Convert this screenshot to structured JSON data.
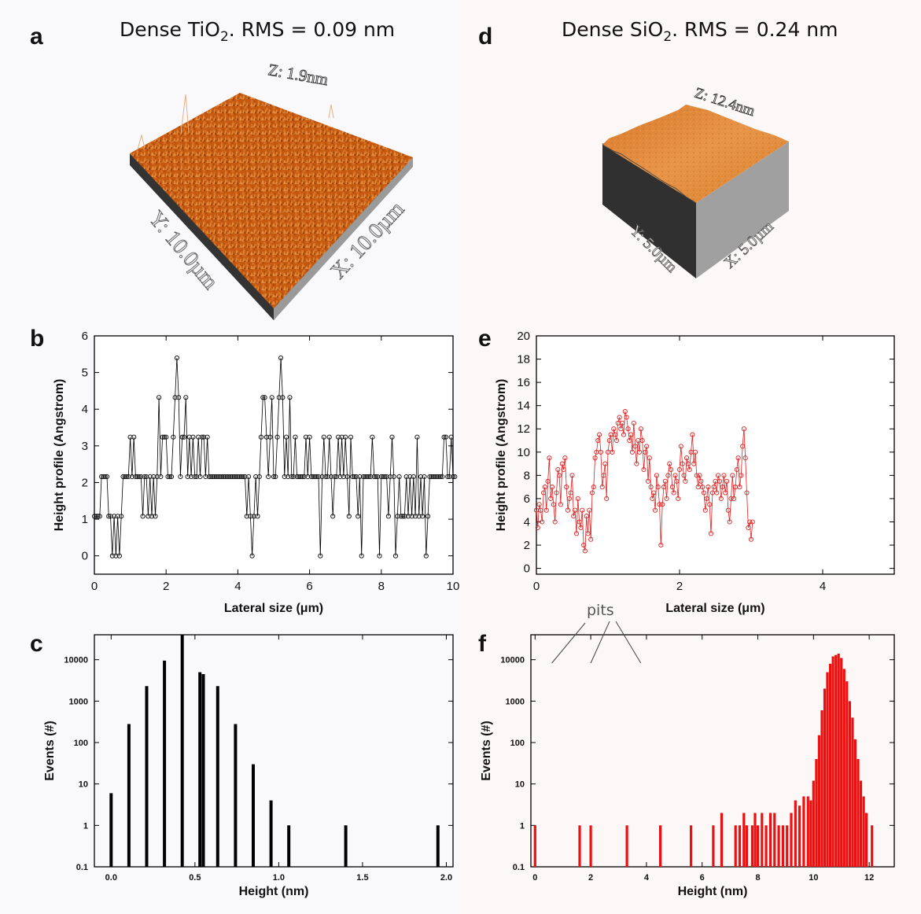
{
  "panels": {
    "a": {
      "label": "a",
      "title": "Dense TiO",
      "title_sub": "2",
      "title_rest": ". RMS = 0.09 nm",
      "z_label": "Z: 1.9nm",
      "x_label": "X: 10.0µm",
      "y_label": "Y: 10.0µm"
    },
    "d": {
      "label": "d",
      "title": "Dense SiO",
      "title_sub": "2",
      "title_rest": ". RMS = 0.24 nm",
      "z_label": "Z: 12.4nm",
      "x_label": "X: 5.0µm",
      "y_label": "Y: 5.0µm"
    },
    "b": {
      "label": "b"
    },
    "c": {
      "label": "c"
    },
    "e": {
      "label": "e"
    },
    "f": {
      "label": "f",
      "annotation": "pits"
    }
  },
  "colors": {
    "afm_surface": "#c45a10",
    "afm_surface_si": "#e08a35",
    "series_b": "#000000",
    "series_e": "#e02020",
    "bars_c": "#000000",
    "bars_f": "#ee1010"
  },
  "chart_data": [
    {
      "id": "b",
      "type": "line",
      "xlabel": "Lateral size (μm)",
      "ylabel": "Height profile (Angstrom)",
      "xlim": [
        0,
        10
      ],
      "ylim": [
        -0.5,
        6
      ],
      "xticks": [
        0,
        2,
        4,
        6,
        8,
        10
      ],
      "yticks": [
        0,
        1,
        2,
        3,
        4,
        5,
        6
      ],
      "x_start": 0,
      "x_step": 0.05,
      "values": [
        1.08,
        1.08,
        1.08,
        1.08,
        2.16,
        2.16,
        2.16,
        2.16,
        1.08,
        1.08,
        0,
        1.08,
        0,
        1.08,
        0,
        1.08,
        2.16,
        2.16,
        2.16,
        2.16,
        3.24,
        2.16,
        3.24,
        2.16,
        2.16,
        2.16,
        2.16,
        1.08,
        2.16,
        2.16,
        1.08,
        2.16,
        1.08,
        2.16,
        1.08,
        2.16,
        4.32,
        2.16,
        3.24,
        3.24,
        3.24,
        2.16,
        2.16,
        2.16,
        3.24,
        4.32,
        5.4,
        4.32,
        2.16,
        3.24,
        3.24,
        4.32,
        2.16,
        3.24,
        2.16,
        3.24,
        2.16,
        2.16,
        3.24,
        2.16,
        3.24,
        3.24,
        2.16,
        3.24,
        2.16,
        2.16,
        2.16,
        2.16,
        2.16,
        2.16,
        2.16,
        2.16,
        2.16,
        2.16,
        2.16,
        2.16,
        2.16,
        2.16,
        2.16,
        2.16,
        2.16,
        2.16,
        2.16,
        2.16,
        2.16,
        1.08,
        2.16,
        1.08,
        0,
        1.08,
        2.16,
        1.08,
        2.16,
        3.24,
        4.32,
        4.32,
        3.24,
        2.16,
        3.24,
        4.32,
        2.16,
        2.16,
        3.24,
        4.32,
        5.4,
        4.32,
        2.16,
        3.24,
        2.16,
        4.32,
        2.16,
        2.16,
        3.24,
        2.16,
        2.16,
        2.16,
        2.16,
        2.16,
        3.24,
        2.16,
        3.24,
        2.16,
        2.16,
        2.16,
        2.16,
        2.16,
        0,
        2.16,
        3.24,
        2.16,
        2.16,
        3.24,
        2.16,
        1.08,
        2.16,
        2.16,
        3.24,
        2.16,
        3.24,
        2.16,
        3.24,
        2.16,
        1.08,
        3.24,
        2.16,
        2.16,
        2.16,
        1.08,
        2.16,
        0,
        2.16,
        2.16,
        2.16,
        2.16,
        2.16,
        3.24,
        2.16,
        2.16,
        2.16,
        0,
        2.16,
        2.16,
        2.16,
        2.16,
        1.08,
        2.16,
        3.24,
        2.16,
        0,
        1.08,
        2.16,
        1.08,
        1.08,
        1.08,
        2.16,
        1.08,
        2.16,
        1.08,
        2.16,
        1.08,
        3.24,
        1.08,
        2.16,
        1.08,
        2.16,
        0,
        1.08,
        2.16,
        2.16,
        2.16,
        2.16,
        2.16,
        2.16,
        2.16,
        2.16,
        3.24,
        3.24,
        2.16,
        2.16,
        3.24,
        2.16,
        2.16
      ]
    },
    {
      "id": "e",
      "type": "line",
      "xlabel": "Lateral size (μm)",
      "ylabel": "Height profile (Angstrom)",
      "xlim": [
        0,
        5
      ],
      "ylim": [
        -0.5,
        20
      ],
      "xticks": [
        0,
        2,
        4
      ],
      "yticks": [
        0,
        2,
        4,
        6,
        8,
        10,
        12,
        14,
        16,
        18,
        20
      ],
      "x_start": 0,
      "x_step": 0.02,
      "values": [
        5,
        3.5,
        5.5,
        5,
        4,
        6.5,
        7,
        5,
        7.5,
        9.5,
        6,
        7,
        5.5,
        4,
        6.5,
        8.5,
        8,
        5.5,
        9,
        8.5,
        9.5,
        7,
        5,
        6,
        6.5,
        8,
        4.5,
        5,
        3,
        6,
        4,
        3.5,
        5,
        2,
        1.5,
        4.5,
        3,
        5,
        2.5,
        6.5,
        7,
        9.5,
        10,
        11,
        11.5,
        10,
        7,
        8,
        9,
        6,
        10,
        11,
        11.5,
        10,
        12,
        11.5,
        11,
        12.5,
        13,
        12,
        12.5,
        11.5,
        13.5,
        13,
        12,
        11,
        11.5,
        10,
        12.5,
        10.5,
        9,
        11,
        10,
        12,
        11,
        8.5,
        10,
        10.5,
        7.5,
        9.5,
        7,
        6,
        6.5,
        5,
        8,
        7,
        5.5,
        2,
        5.5,
        7,
        7.5,
        6,
        8,
        9,
        8.5,
        7,
        6.5,
        8,
        7.5,
        6,
        8.5,
        10.5,
        9,
        8,
        7.5,
        9.5,
        9,
        8.5,
        10,
        11.5,
        9,
        10,
        8,
        7,
        8,
        7.5,
        7,
        6.5,
        5,
        6,
        7,
        5.5,
        3,
        6.5,
        7,
        7.5,
        6.5,
        8,
        7.5,
        6,
        7,
        8,
        6.5,
        7.5,
        5,
        4,
        6,
        8,
        6,
        7,
        8.5,
        9.5,
        7,
        8,
        10.5,
        12,
        9.5,
        6.5,
        3.5,
        4,
        2.5,
        4
      ]
    },
    {
      "id": "c",
      "type": "bar",
      "yscale": "log",
      "xlabel": "Height (nm)",
      "ylabel": "Events (#)",
      "xlim": [
        -0.1,
        2.04
      ],
      "ylim": [
        0.1,
        40000
      ],
      "xticks": [
        0.0,
        0.5,
        1.0,
        1.5,
        2.0
      ],
      "xtick_labels": [
        "0.0",
        "0.5",
        "1.0",
        "1.5",
        "2.0"
      ],
      "yticks": [
        0.1,
        1,
        10,
        100,
        1000,
        10000
      ],
      "ytick_labels": [
        "0.1",
        "1",
        "10",
        "100",
        "1000",
        "10000"
      ],
      "x": [
        0.0,
        0.106,
        0.212,
        0.318,
        0.424,
        0.53,
        0.55,
        0.636,
        0.742,
        0.848,
        0.954,
        1.06,
        1.4,
        1.95
      ],
      "values": [
        6,
        280,
        2300,
        9500,
        40000,
        5000,
        4500,
        2300,
        280,
        30,
        4,
        1,
        1,
        1
      ]
    },
    {
      "id": "f",
      "type": "bar",
      "yscale": "log",
      "xlabel": "Height (nm)",
      "ylabel": "Events (#)",
      "xlim": [
        -0.15,
        12.9
      ],
      "ylim": [
        0.1,
        40000
      ],
      "xticks": [
        0,
        2,
        4,
        6,
        8,
        10,
        12
      ],
      "xtick_labels": [
        "0",
        "2",
        "4",
        "6",
        "8",
        "10",
        "12"
      ],
      "yticks": [
        0.1,
        1,
        10,
        100,
        1000,
        10000
      ],
      "ytick_labels": [
        "0.1",
        "1",
        "10",
        "100",
        "1000",
        "10000"
      ],
      "x": [
        0,
        1.6,
        2.0,
        3.3,
        4.5,
        5.6,
        6.4,
        6.7,
        7.2,
        7.35,
        7.5,
        7.6,
        7.8,
        7.9,
        8.0,
        8.15,
        8.3,
        8.45,
        8.6,
        8.75,
        8.9,
        9.05,
        9.2,
        9.35,
        9.5,
        9.65,
        9.8,
        9.9,
        10.0,
        10.1,
        10.2,
        10.3,
        10.4,
        10.5,
        10.6,
        10.7,
        10.8,
        10.9,
        11.0,
        11.1,
        11.2,
        11.3,
        11.4,
        11.5,
        11.6,
        11.7,
        11.8,
        11.9,
        12.1
      ],
      "values": [
        1,
        1,
        1,
        1,
        1,
        1,
        1,
        2,
        1,
        1,
        2,
        1,
        1,
        2,
        1,
        2,
        1,
        2,
        2,
        1,
        1,
        1,
        2,
        4,
        3,
        5,
        5,
        4,
        12,
        40,
        150,
        600,
        2000,
        5000,
        8000,
        12000,
        13000,
        14000,
        11000,
        6000,
        3000,
        1000,
        400,
        120,
        40,
        12,
        5,
        2,
        1
      ],
      "annotation_targets": [
        0.6,
        2.0,
        3.8
      ]
    }
  ]
}
